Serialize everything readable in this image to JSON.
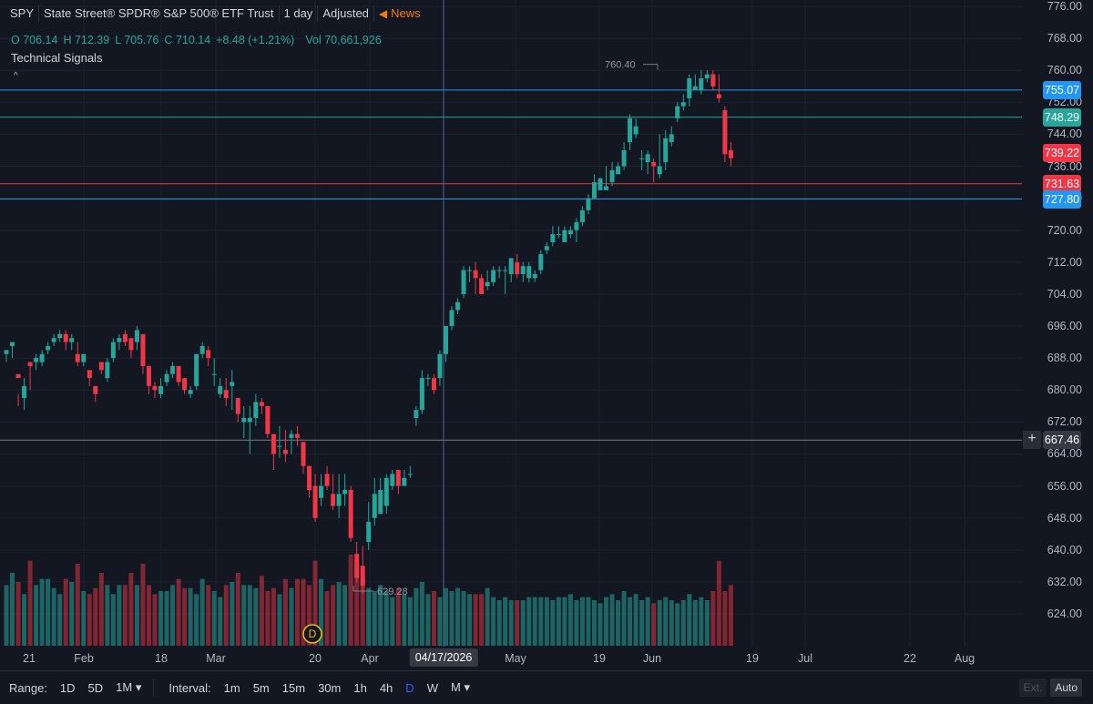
{
  "header": {
    "symbol": "SPY",
    "name": "State Street® SPDR® S&P 500® ETF Trust",
    "interval": "1 day",
    "adjustment": "Adjusted",
    "news_label": "News"
  },
  "ohlc": {
    "o_label": "O",
    "o": "706.14",
    "h_label": "H",
    "h": "712.39",
    "l_label": "L",
    "l": "705.76",
    "c_label": "C",
    "c": "710.14",
    "change": "+8.48 (+1.21%)",
    "vol_label": "Vol",
    "vol": "70,661,926"
  },
  "indicator_label": "Technical Signals",
  "collapse_glyph": "^",
  "price_axis": {
    "ticks": [
      "776.00",
      "768.00",
      "760.00",
      "752.00",
      "744.00",
      "736.00",
      "728.00",
      "720.00",
      "712.00",
      "704.00",
      "696.00",
      "688.00",
      "680.00",
      "672.00",
      "664.00",
      "656.00",
      "648.00",
      "640.00",
      "632.00",
      "624.00"
    ],
    "tags": [
      {
        "value": "755.07",
        "color": "#2196f3"
      },
      {
        "value": "748.29",
        "color": "#26a69a"
      },
      {
        "value": "739.22",
        "color": "#f23645"
      },
      {
        "value": "731.63",
        "color": "#f23645"
      },
      {
        "value": "727.80",
        "color": "#2196f3"
      },
      {
        "value": "667.46",
        "color": "#363a45"
      }
    ],
    "plus_glyph": "+"
  },
  "annotations": {
    "high": "760.40",
    "low": "629.28",
    "dividend_marker": "D"
  },
  "time_axis": {
    "ticks": [
      "21",
      "Feb",
      "18",
      "Mar",
      "20",
      "Apr",
      "May",
      "19",
      "Jun",
      "19",
      "Jul",
      "22",
      "Aug"
    ],
    "cursor_label": "04/17/2026"
  },
  "bottom_bar": {
    "range_label": "Range:",
    "ranges": [
      "1D",
      "5D",
      "1M"
    ],
    "range_dropdown": "▾",
    "interval_label": "Interval:",
    "intervals": [
      "1m",
      "5m",
      "15m",
      "30m",
      "1h",
      "4h",
      "D",
      "W",
      "M"
    ],
    "active_interval": "D",
    "m_dropdown": "▾",
    "ext": "Ext.",
    "auto": "Auto"
  },
  "colors": {
    "up": "#26a69a",
    "down": "#f23645",
    "background": "#131722",
    "grid": "#1e2230",
    "crosshair": "#4e6691"
  },
  "chart_data": {
    "type": "candlestick",
    "ylim": [
      620,
      778
    ],
    "horizontal_lines": [
      {
        "value": 755.07,
        "color": "#2196f3"
      },
      {
        "value": 748.29,
        "color": "#26a69a"
      },
      {
        "value": 731.63,
        "color": "#f23645"
      },
      {
        "value": 727.8,
        "color": "#2196f3"
      },
      {
        "value": 667.46,
        "color": "#787b86"
      }
    ],
    "candles": [
      [
        689,
        690,
        690,
        687
      ],
      [
        691,
        692,
        692,
        688
      ],
      [
        684,
        683,
        679,
        676
      ],
      [
        678,
        681,
        683,
        675
      ],
      [
        687,
        686,
        687,
        680
      ],
      [
        687,
        688,
        689,
        685
      ],
      [
        687,
        689,
        690,
        686
      ],
      [
        690,
        691,
        692,
        689
      ],
      [
        692,
        693,
        694,
        691
      ],
      [
        693,
        694,
        695,
        692
      ],
      [
        694,
        692,
        695,
        690
      ],
      [
        692,
        693,
        694,
        690
      ],
      [
        689,
        687,
        692,
        686
      ],
      [
        687,
        689,
        689,
        686
      ],
      [
        685,
        683,
        683,
        681
      ],
      [
        681,
        679,
        680,
        677
      ],
      [
        687,
        685,
        686,
        684
      ],
      [
        683,
        687,
        688,
        682
      ],
      [
        688,
        692,
        693,
        687
      ],
      [
        692,
        693,
        694,
        690
      ],
      [
        694,
        692,
        695,
        691
      ],
      [
        693,
        690,
        692,
        688
      ],
      [
        692,
        695,
        696,
        690
      ],
      [
        694,
        686,
        687,
        684
      ],
      [
        686,
        681,
        685,
        679
      ],
      [
        681,
        680,
        682,
        678
      ],
      [
        679,
        681,
        683,
        678
      ],
      [
        682,
        684,
        685,
        681
      ],
      [
        684,
        686,
        687,
        683
      ],
      [
        686,
        682,
        686,
        681
      ],
      [
        683,
        680,
        683,
        679
      ],
      [
        679,
        680,
        681,
        678
      ],
      [
        681,
        689,
        689,
        680
      ],
      [
        689,
        691,
        692,
        688
      ],
      [
        690,
        688,
        691,
        686
      ],
      [
        684,
        684,
        688,
        681
      ],
      [
        679,
        681,
        683,
        678
      ],
      [
        680,
        678,
        683,
        676
      ],
      [
        681,
        682,
        685,
        675
      ],
      [
        678,
        674,
        678,
        672
      ],
      [
        672,
        673,
        676,
        668
      ],
      [
        672,
        673,
        676,
        664
      ],
      [
        673,
        677,
        679,
        671
      ],
      [
        677,
        676,
        678,
        674
      ],
      [
        676,
        669,
        676,
        668
      ],
      [
        669,
        664,
        669,
        660
      ],
      [
        666,
        666,
        671,
        663
      ],
      [
        665,
        664,
        670,
        662
      ],
      [
        668,
        669,
        670,
        664
      ],
      [
        669,
        668,
        671,
        666
      ],
      [
        667,
        661,
        667,
        659
      ],
      [
        661,
        655,
        661,
        653
      ],
      [
        656,
        648,
        659,
        647
      ],
      [
        653,
        656,
        659,
        651
      ],
      [
        659,
        656,
        661,
        655
      ],
      [
        654,
        651,
        659,
        650
      ],
      [
        651,
        654,
        659,
        648
      ],
      [
        654,
        655,
        659,
        651
      ],
      [
        655,
        643,
        656,
        642
      ],
      [
        639,
        633,
        642,
        632
      ],
      [
        636,
        631,
        641,
        629
      ],
      [
        642,
        647,
        652,
        640
      ],
      [
        648,
        654,
        658,
        646
      ],
      [
        649,
        655,
        658,
        649
      ],
      [
        651,
        658,
        659,
        649
      ],
      [
        656,
        659,
        660,
        655
      ],
      [
        660,
        656,
        660,
        654
      ],
      [
        656,
        658,
        660,
        656
      ],
      [
        659,
        659,
        661,
        658
      ],
      [
        673,
        675,
        676,
        671
      ],
      [
        675,
        683,
        685,
        674
      ],
      [
        683,
        683,
        684,
        681
      ],
      [
        683,
        680,
        684,
        679
      ],
      [
        683,
        689,
        690,
        681
      ],
      [
        689,
        696,
        696,
        687
      ],
      [
        696,
        700,
        701,
        695
      ],
      [
        700,
        702,
        703,
        699
      ],
      [
        704,
        710,
        711,
        703
      ],
      [
        710,
        710,
        711,
        707
      ],
      [
        710,
        708,
        712,
        704
      ],
      [
        708,
        704,
        709,
        704
      ],
      [
        706,
        707,
        710,
        705
      ],
      [
        707,
        710,
        711,
        706
      ],
      [
        710,
        710,
        711,
        708
      ],
      [
        710,
        710,
        711,
        704
      ],
      [
        709,
        713,
        713,
        707
      ],
      [
        712,
        709,
        714,
        708
      ],
      [
        709,
        711,
        712,
        707
      ],
      [
        708,
        711,
        712,
        707
      ],
      [
        708,
        709,
        710,
        707
      ],
      [
        710,
        714,
        715,
        709
      ],
      [
        715,
        716,
        717,
        714
      ],
      [
        717,
        719,
        721,
        716
      ],
      [
        719,
        719,
        721,
        718
      ],
      [
        717,
        720,
        721,
        717
      ],
      [
        719,
        720,
        721,
        718
      ],
      [
        720,
        722,
        723,
        717
      ],
      [
        722,
        725,
        726,
        721
      ],
      [
        725,
        728,
        729,
        724
      ],
      [
        728,
        732,
        734,
        728
      ],
      [
        730,
        733,
        733,
        730
      ],
      [
        730,
        731,
        736,
        730
      ],
      [
        732,
        735,
        737,
        731
      ],
      [
        734,
        736,
        737,
        734
      ],
      [
        736,
        740,
        742,
        735
      ],
      [
        742,
        748,
        749,
        740
      ],
      [
        744,
        746,
        748,
        743
      ],
      [
        738,
        738,
        740,
        735
      ],
      [
        737,
        739,
        740,
        734
      ],
      [
        737,
        736,
        738,
        732
      ],
      [
        734,
        736,
        744,
        733
      ],
      [
        737,
        743,
        745,
        735
      ],
      [
        742,
        744,
        746,
        741
      ],
      [
        748,
        751,
        752,
        747
      ],
      [
        751,
        752,
        754,
        750
      ],
      [
        753,
        758,
        759,
        751
      ],
      [
        755,
        756,
        759,
        755
      ],
      [
        755,
        758,
        760,
        754
      ],
      [
        758,
        759,
        760,
        757
      ],
      [
        759,
        756,
        760,
        755
      ],
      [
        754,
        753,
        759,
        752
      ],
      [
        750,
        739,
        751,
        737
      ],
      [
        740,
        738,
        742,
        736
      ]
    ],
    "volume_max": 33
  }
}
